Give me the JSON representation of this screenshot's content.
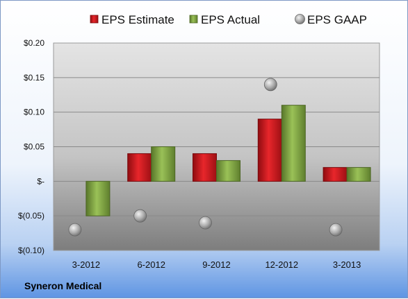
{
  "chart_data": {
    "type": "bar",
    "company": "Syneron Medical",
    "categories": [
      "3-2012",
      "6-2012",
      "9-2012",
      "12-2012",
      "3-2013"
    ],
    "series": [
      {
        "name": "EPS Estimate",
        "values": [
          null,
          0.04,
          0.04,
          0.09,
          0.02
        ],
        "color": "#c8171d"
      },
      {
        "name": "EPS Actual",
        "values": [
          -0.05,
          0.05,
          0.03,
          0.11,
          0.02
        ],
        "color": "#7aa03c"
      },
      {
        "name": "EPS GAAP",
        "values": [
          -0.07,
          -0.05,
          -0.06,
          0.14,
          -0.07
        ],
        "color": "#a9a9a9"
      }
    ],
    "y_ticks": [
      {
        "value": 0.2,
        "label": "$0.20"
      },
      {
        "value": 0.15,
        "label": "$0.15"
      },
      {
        "value": 0.1,
        "label": "$0.10"
      },
      {
        "value": 0.05,
        "label": "$0.05"
      },
      {
        "value": 0,
        "label": "$-"
      },
      {
        "value": -0.05,
        "label": "$(0.05)"
      },
      {
        "value": -0.1,
        "label": "$(0.10)"
      }
    ],
    "ylim": [
      -0.1,
      0.2
    ],
    "grid": true,
    "legend": "top"
  }
}
